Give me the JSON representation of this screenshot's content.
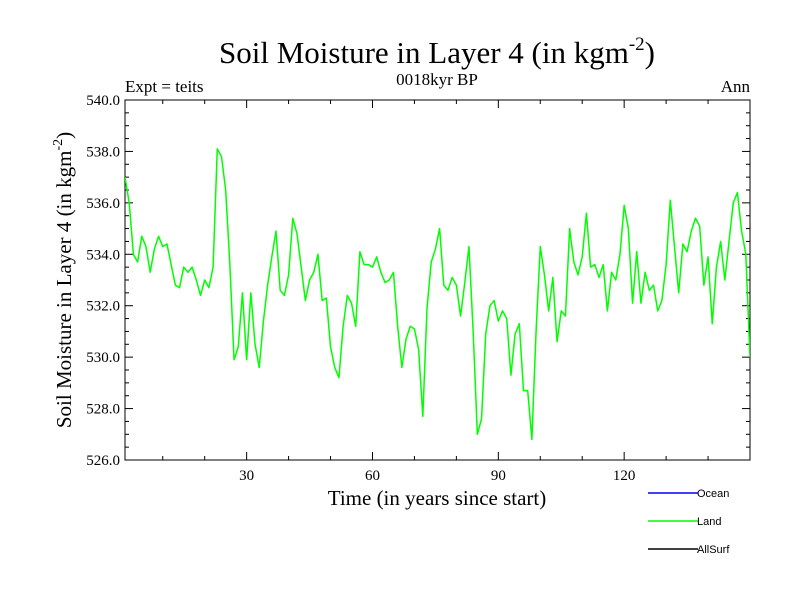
{
  "chart_data": {
    "type": "line",
    "title": "Soil Moisture in Layer 4 (in kgm",
    "title_sup": "-2",
    "title_end": ")",
    "expt_label": "Expt = teits",
    "subtitle": "0018kyr BP",
    "season": "Ann",
    "xlabel": "Time (in years since start)",
    "ylabel": "Soil Moisture in Layer 4 (in kgm",
    "ylabel_sup": "-2",
    "ylabel_end": ")",
    "xlim": [
      1,
      150
    ],
    "ylim": [
      526.0,
      540.0
    ],
    "xticks": [
      30,
      60,
      90,
      120
    ],
    "yticks": [
      526.0,
      528.0,
      530.0,
      532.0,
      534.0,
      536.0,
      538.0,
      540.0
    ],
    "ytick_labels": [
      "526.0",
      "528.0",
      "530.0",
      "532.0",
      "534.0",
      "536.0",
      "538.0",
      "540.0"
    ],
    "legend": [
      {
        "name": "Ocean",
        "color": "#0000ff"
      },
      {
        "name": "Land",
        "color": "#00ff00"
      },
      {
        "name": "AllSurf",
        "color": "#000000"
      }
    ],
    "series": [
      {
        "name": "Land",
        "color": "#00ff00",
        "x": [
          1,
          2,
          3,
          4,
          5,
          6,
          7,
          8,
          9,
          10,
          11,
          12,
          13,
          14,
          15,
          16,
          17,
          18,
          19,
          20,
          21,
          22,
          23,
          24,
          25,
          26,
          27,
          28,
          29,
          30,
          31,
          32,
          33,
          34,
          35,
          36,
          37,
          38,
          39,
          40,
          41,
          42,
          43,
          44,
          45,
          46,
          47,
          48,
          49,
          50,
          51,
          52,
          53,
          54,
          55,
          56,
          57,
          58,
          59,
          60,
          61,
          62,
          63,
          64,
          65,
          66,
          67,
          68,
          69,
          70,
          71,
          72,
          73,
          74,
          75,
          76,
          77,
          78,
          79,
          80,
          81,
          82,
          83,
          84,
          85,
          86,
          87,
          88,
          89,
          90,
          91,
          92,
          93,
          94,
          95,
          96,
          97,
          98,
          99,
          100,
          101,
          102,
          103,
          104,
          105,
          106,
          107,
          108,
          109,
          110,
          111,
          112,
          113,
          114,
          115,
          116,
          117,
          118,
          119,
          120,
          121,
          122,
          123,
          124,
          125,
          126,
          127,
          128,
          129,
          130,
          131,
          132,
          133,
          134,
          135,
          136,
          137,
          138,
          139,
          140,
          141,
          142,
          143,
          144,
          145,
          146,
          147,
          148,
          149,
          150
        ],
        "values": [
          537.0,
          536.0,
          534.0,
          533.7,
          534.7,
          534.3,
          533.3,
          534.2,
          534.7,
          534.3,
          534.4,
          533.6,
          532.8,
          532.7,
          533.5,
          533.3,
          533.5,
          533.0,
          532.4,
          533.0,
          532.7,
          533.5,
          538.1,
          537.8,
          536.5,
          533.6,
          529.9,
          530.4,
          532.5,
          529.9,
          532.5,
          530.5,
          529.6,
          531.4,
          532.8,
          533.9,
          534.9,
          532.6,
          532.4,
          533.2,
          535.4,
          534.8,
          533.5,
          532.2,
          533.0,
          533.3,
          534.0,
          532.2,
          532.3,
          530.4,
          529.6,
          529.2,
          531.2,
          532.4,
          532.1,
          531.2,
          534.1,
          533.6,
          533.6,
          533.5,
          533.9,
          533.3,
          532.9,
          533.0,
          533.3,
          531.2,
          529.6,
          530.7,
          531.2,
          531.1,
          530.3,
          527.7,
          531.9,
          533.7,
          534.2,
          535.0,
          532.8,
          532.6,
          533.1,
          532.8,
          531.6,
          532.9,
          534.3,
          531.0,
          527.0,
          527.6,
          530.9,
          532.0,
          532.2,
          531.4,
          531.8,
          531.5,
          529.3,
          530.9,
          531.3,
          528.7,
          528.7,
          526.8,
          531.0,
          534.3,
          533.2,
          531.8,
          533.1,
          530.6,
          531.8,
          531.6,
          535.0,
          533.7,
          533.2,
          533.9,
          535.6,
          533.5,
          533.6,
          533.1,
          533.6,
          531.8,
          533.3,
          533.0,
          534.0,
          535.9,
          535.0,
          532.1,
          534.1,
          532.1,
          533.3,
          532.6,
          532.8,
          531.8,
          532.2,
          533.6,
          536.1,
          534.3,
          532.5,
          534.4,
          534.1,
          534.9,
          535.4,
          535.1,
          532.8,
          533.9,
          531.3,
          533.5,
          534.5,
          533.0,
          534.5,
          536.0,
          536.4,
          534.9,
          534.0,
          530.0
        ]
      }
    ]
  }
}
